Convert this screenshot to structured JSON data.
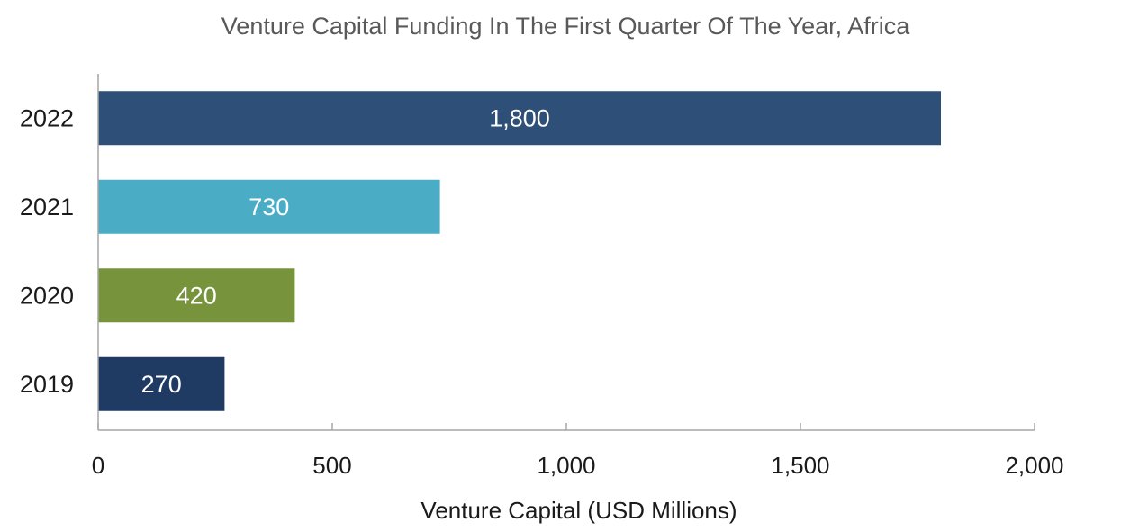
{
  "chart_data": {
    "type": "bar",
    "orientation": "horizontal",
    "title": "Venture Capital Funding In The First Quarter Of The Year, Africa",
    "xlabel": "Venture Capital (USD Millions)",
    "ylabel": "",
    "categories": [
      "2022",
      "2021",
      "2020",
      "2019"
    ],
    "values": [
      1800,
      730,
      420,
      270
    ],
    "data_labels": [
      "1,800",
      "730",
      "420",
      "270"
    ],
    "bar_colors": [
      "#2e4f78",
      "#4bacc6",
      "#77933c",
      "#1f3a63"
    ],
    "xlim": [
      0,
      2000
    ],
    "x_ticks": [
      0,
      500,
      1000,
      1500,
      2000
    ],
    "x_tick_labels": [
      "0",
      "500",
      "1,000",
      "1,500",
      "2,000"
    ],
    "grid": false,
    "legend": "none"
  }
}
